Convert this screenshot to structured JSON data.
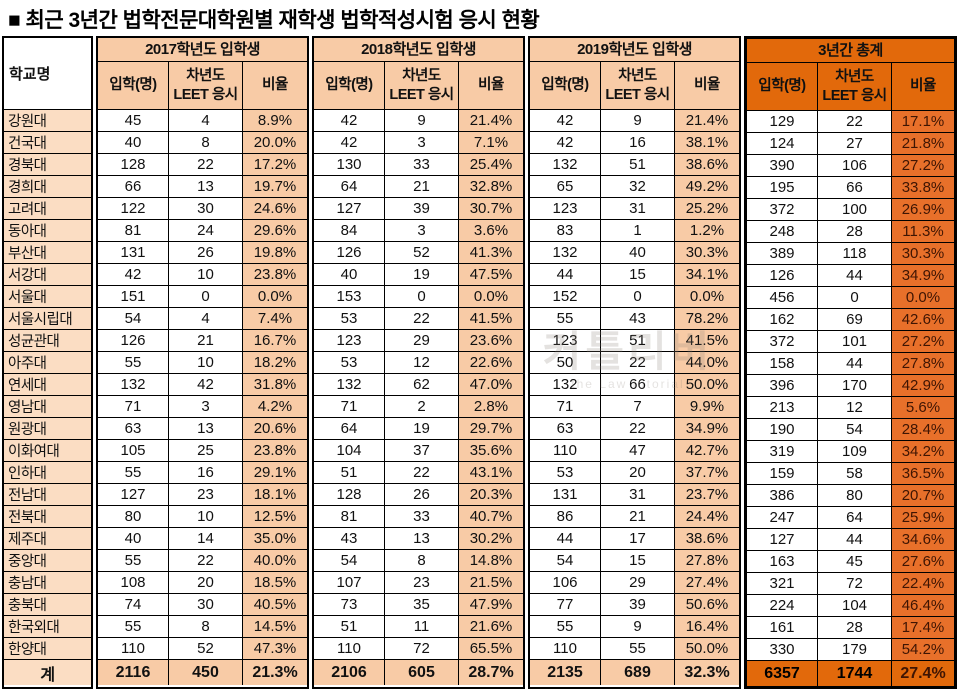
{
  "title": "■ 최근 3년간 법학전문대학원별 재학생 법학적성시험 응시 현황",
  "colors": {
    "header_peach": "#f8cba6",
    "school_cell_peach": "#fbddc3",
    "total_orange_header": "#e2690b",
    "total_orange_cell": "#e8702a",
    "ratio_text_on_orange": "#3f1503",
    "border_black": "#000000"
  },
  "watermark": {
    "logo": "커틀리버",
    "sub": "the Law tutorial"
  },
  "table": {
    "school_col_header": "학교명",
    "col_headers": [
      "입학(명)",
      "차년도\nLEET 응시",
      "비율"
    ],
    "groups": [
      {
        "label": "2017학년도 입학생"
      },
      {
        "label": "2018학년도 입학생"
      },
      {
        "label": "2019학년도 입학생"
      },
      {
        "label": "3년간 총계"
      }
    ],
    "rows": [
      {
        "school": "강원대",
        "values": [
          "45",
          "4",
          "8.9%",
          "42",
          "9",
          "21.4%",
          "42",
          "9",
          "21.4%",
          "129",
          "22",
          "17.1%"
        ]
      },
      {
        "school": "건국대",
        "values": [
          "40",
          "8",
          "20.0%",
          "42",
          "3",
          "7.1%",
          "42",
          "16",
          "38.1%",
          "124",
          "27",
          "21.8%"
        ]
      },
      {
        "school": "경북대",
        "values": [
          "128",
          "22",
          "17.2%",
          "130",
          "33",
          "25.4%",
          "132",
          "51",
          "38.6%",
          "390",
          "106",
          "27.2%"
        ]
      },
      {
        "school": "경희대",
        "values": [
          "66",
          "13",
          "19.7%",
          "64",
          "21",
          "32.8%",
          "65",
          "32",
          "49.2%",
          "195",
          "66",
          "33.8%"
        ]
      },
      {
        "school": "고려대",
        "values": [
          "122",
          "30",
          "24.6%",
          "127",
          "39",
          "30.7%",
          "123",
          "31",
          "25.2%",
          "372",
          "100",
          "26.9%"
        ]
      },
      {
        "school": "동아대",
        "values": [
          "81",
          "24",
          "29.6%",
          "84",
          "3",
          "3.6%",
          "83",
          "1",
          "1.2%",
          "248",
          "28",
          "11.3%"
        ]
      },
      {
        "school": "부산대",
        "values": [
          "131",
          "26",
          "19.8%",
          "126",
          "52",
          "41.3%",
          "132",
          "40",
          "30.3%",
          "389",
          "118",
          "30.3%"
        ]
      },
      {
        "school": "서강대",
        "values": [
          "42",
          "10",
          "23.8%",
          "40",
          "19",
          "47.5%",
          "44",
          "15",
          "34.1%",
          "126",
          "44",
          "34.9%"
        ]
      },
      {
        "school": "서울대",
        "values": [
          "151",
          "0",
          "0.0%",
          "153",
          "0",
          "0.0%",
          "152",
          "0",
          "0.0%",
          "456",
          "0",
          "0.0%"
        ]
      },
      {
        "school": "서울시립대",
        "values": [
          "54",
          "4",
          "7.4%",
          "53",
          "22",
          "41.5%",
          "55",
          "43",
          "78.2%",
          "162",
          "69",
          "42.6%"
        ]
      },
      {
        "school": "성균관대",
        "values": [
          "126",
          "21",
          "16.7%",
          "123",
          "29",
          "23.6%",
          "123",
          "51",
          "41.5%",
          "372",
          "101",
          "27.2%"
        ]
      },
      {
        "school": "아주대",
        "values": [
          "55",
          "10",
          "18.2%",
          "53",
          "12",
          "22.6%",
          "50",
          "22",
          "44.0%",
          "158",
          "44",
          "27.8%"
        ]
      },
      {
        "school": "연세대",
        "values": [
          "132",
          "42",
          "31.8%",
          "132",
          "62",
          "47.0%",
          "132",
          "66",
          "50.0%",
          "396",
          "170",
          "42.9%"
        ]
      },
      {
        "school": "영남대",
        "values": [
          "71",
          "3",
          "4.2%",
          "71",
          "2",
          "2.8%",
          "71",
          "7",
          "9.9%",
          "213",
          "12",
          "5.6%"
        ]
      },
      {
        "school": "원광대",
        "values": [
          "63",
          "13",
          "20.6%",
          "64",
          "19",
          "29.7%",
          "63",
          "22",
          "34.9%",
          "190",
          "54",
          "28.4%"
        ]
      },
      {
        "school": "이화여대",
        "values": [
          "105",
          "25",
          "23.8%",
          "104",
          "37",
          "35.6%",
          "110",
          "47",
          "42.7%",
          "319",
          "109",
          "34.2%"
        ]
      },
      {
        "school": "인하대",
        "values": [
          "55",
          "16",
          "29.1%",
          "51",
          "22",
          "43.1%",
          "53",
          "20",
          "37.7%",
          "159",
          "58",
          "36.5%"
        ]
      },
      {
        "school": "전남대",
        "values": [
          "127",
          "23",
          "18.1%",
          "128",
          "26",
          "20.3%",
          "131",
          "31",
          "23.7%",
          "386",
          "80",
          "20.7%"
        ]
      },
      {
        "school": "전북대",
        "values": [
          "80",
          "10",
          "12.5%",
          "81",
          "33",
          "40.7%",
          "86",
          "21",
          "24.4%",
          "247",
          "64",
          "25.9%"
        ]
      },
      {
        "school": "제주대",
        "values": [
          "40",
          "14",
          "35.0%",
          "43",
          "13",
          "30.2%",
          "44",
          "17",
          "38.6%",
          "127",
          "44",
          "34.6%"
        ]
      },
      {
        "school": "중앙대",
        "values": [
          "55",
          "22",
          "40.0%",
          "54",
          "8",
          "14.8%",
          "54",
          "15",
          "27.8%",
          "163",
          "45",
          "27.6%"
        ]
      },
      {
        "school": "충남대",
        "values": [
          "108",
          "20",
          "18.5%",
          "107",
          "23",
          "21.5%",
          "106",
          "29",
          "27.4%",
          "321",
          "72",
          "22.4%"
        ]
      },
      {
        "school": "충북대",
        "values": [
          "74",
          "30",
          "40.5%",
          "73",
          "35",
          "47.9%",
          "77",
          "39",
          "50.6%",
          "224",
          "104",
          "46.4%"
        ]
      },
      {
        "school": "한국외대",
        "values": [
          "55",
          "8",
          "14.5%",
          "51",
          "11",
          "21.6%",
          "55",
          "9",
          "16.4%",
          "161",
          "28",
          "17.4%"
        ]
      },
      {
        "school": "한양대",
        "values": [
          "110",
          "52",
          "47.3%",
          "110",
          "72",
          "65.5%",
          "110",
          "55",
          "50.0%",
          "330",
          "179",
          "54.2%"
        ]
      }
    ],
    "total_row": {
      "school": "계",
      "values": [
        "2116",
        "450",
        "21.3%",
        "2106",
        "605",
        "28.7%",
        "2135",
        "689",
        "32.3%",
        "6357",
        "1744",
        "27.4%"
      ]
    }
  }
}
